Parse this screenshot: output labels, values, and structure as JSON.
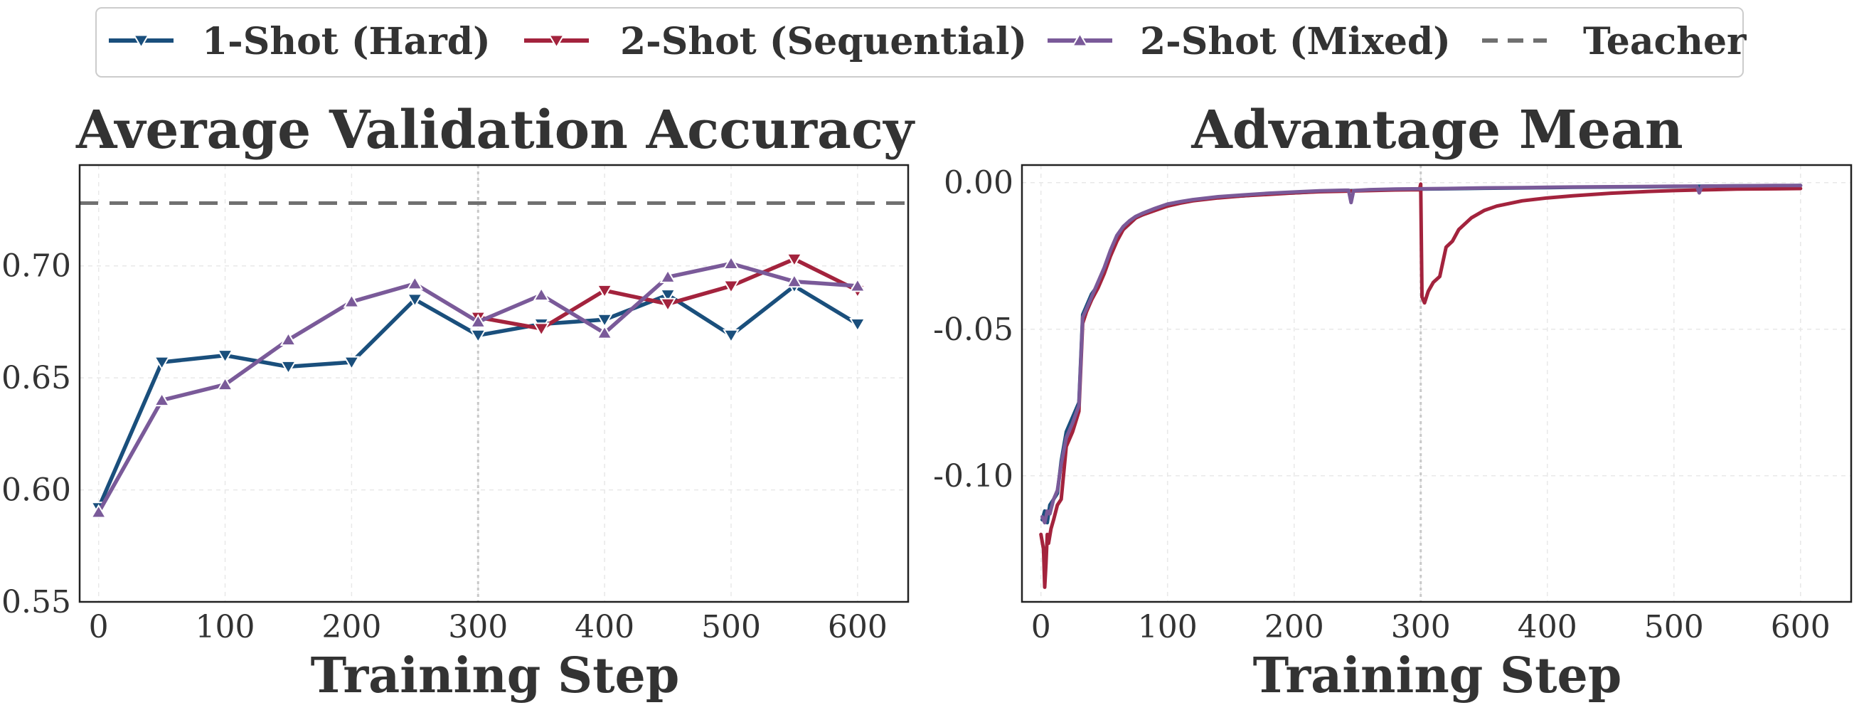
{
  "legend": {
    "items": [
      {
        "label": "1-Shot (Hard)",
        "color": "#1a4f7c",
        "marker": "triangle-down"
      },
      {
        "label": "2-Shot (Sequential)",
        "color": "#a3233d",
        "marker": "triangle-down"
      },
      {
        "label": "2-Shot (Mixed)",
        "color": "#7a5a99",
        "marker": "triangle-up"
      },
      {
        "label": "Teacher",
        "color": "#707070",
        "marker": "dashed-line"
      }
    ],
    "placement": "top-center"
  },
  "chart_data": [
    {
      "type": "line",
      "title": "Average Validation Accuracy",
      "xlabel": "Training Step",
      "ylabel": "",
      "xlim": [
        -15,
        640
      ],
      "ylim": [
        0.55,
        0.745
      ],
      "xticks": [
        "0",
        "100",
        "200",
        "300",
        "400",
        "500",
        "600"
      ],
      "yticks": [
        "0.55",
        "0.60",
        "0.65",
        "0.70"
      ],
      "grid": true,
      "vline_x": 300,
      "teacher_value": 0.728,
      "series": [
        {
          "name": "1-Shot (Hard)",
          "color": "#1a4f7c",
          "marker": "triangle-down",
          "x": [
            0,
            50,
            100,
            150,
            200,
            250,
            300,
            350,
            400,
            450,
            500,
            550,
            600
          ],
          "y": [
            0.592,
            0.657,
            0.66,
            0.655,
            0.657,
            0.685,
            0.669,
            0.674,
            0.676,
            0.687,
            0.669,
            0.691,
            0.674
          ]
        },
        {
          "name": "2-Shot (Sequential)",
          "color": "#a3233d",
          "marker": "triangle-down",
          "x": [
            300,
            350,
            400,
            450,
            500,
            550,
            600
          ],
          "y": [
            0.677,
            0.672,
            0.689,
            0.683,
            0.691,
            0.703,
            0.689
          ]
        },
        {
          "name": "2-Shot (Mixed)",
          "color": "#7a5a99",
          "marker": "triangle-up",
          "x": [
            0,
            50,
            100,
            150,
            200,
            250,
            300,
            350,
            400,
            450,
            500,
            550,
            600
          ],
          "y": [
            0.59,
            0.64,
            0.647,
            0.667,
            0.684,
            0.692,
            0.675,
            0.687,
            0.67,
            0.695,
            0.701,
            0.693,
            0.691
          ]
        }
      ]
    },
    {
      "type": "line",
      "title": "Advantage Mean",
      "xlabel": "Training Step",
      "ylabel": "",
      "xlim": [
        -15,
        640
      ],
      "ylim": [
        -0.143,
        0.006
      ],
      "xticks": [
        "0",
        "100",
        "200",
        "300",
        "400",
        "500",
        "600"
      ],
      "yticks": [
        "0.00",
        "-0.05",
        "-0.10"
      ],
      "grid": true,
      "vline_x": 300,
      "series": [
        {
          "name": "1-Shot (Hard)",
          "color": "#1a4f7c",
          "x": [
            1,
            3,
            5,
            7,
            10,
            13,
            16,
            20,
            25,
            30,
            33,
            36,
            40,
            45,
            50,
            55,
            60,
            65,
            70,
            75,
            80,
            90,
            100,
            110,
            120,
            140,
            160,
            180,
            200,
            220,
            240,
            260,
            280,
            300,
            320,
            350,
            380,
            400,
            420,
            450,
            480,
            500,
            520,
            550,
            580,
            600
          ],
          "y": [
            -0.115,
            -0.112,
            -0.116,
            -0.11,
            -0.108,
            -0.106,
            -0.095,
            -0.085,
            -0.08,
            -0.075,
            -0.045,
            -0.042,
            -0.038,
            -0.035,
            -0.03,
            -0.024,
            -0.019,
            -0.016,
            -0.014,
            -0.012,
            -0.011,
            -0.009,
            -0.0075,
            -0.0068,
            -0.006,
            -0.005,
            -0.0045,
            -0.0038,
            -0.0035,
            -0.003,
            -0.0028,
            -0.0026,
            -0.0024,
            -0.0022,
            -0.0021,
            -0.0019,
            -0.0018,
            -0.0017,
            -0.0016,
            -0.0015,
            -0.0014,
            -0.0013,
            -0.0012,
            -0.0011,
            -0.0011,
            -0.001
          ]
        },
        {
          "name": "2-Shot (Sequential)",
          "color": "#a3233d",
          "x": [
            0,
            2,
            3,
            4,
            5,
            6,
            8,
            10,
            13,
            16,
            20,
            25,
            30,
            33,
            36,
            40,
            45,
            50,
            55,
            60,
            65,
            70,
            75,
            80,
            90,
            100,
            110,
            120,
            140,
            160,
            180,
            200,
            220,
            240,
            260,
            280,
            299,
            300,
            301,
            303,
            306,
            310,
            315,
            320,
            325,
            330,
            340,
            350,
            360,
            380,
            400,
            420,
            450,
            480,
            500,
            520,
            550,
            580,
            600
          ],
          "y": [
            -0.12,
            -0.125,
            -0.138,
            -0.13,
            -0.12,
            -0.123,
            -0.118,
            -0.115,
            -0.11,
            -0.108,
            -0.09,
            -0.085,
            -0.078,
            -0.048,
            -0.044,
            -0.04,
            -0.036,
            -0.031,
            -0.025,
            -0.02,
            -0.016,
            -0.014,
            -0.012,
            -0.011,
            -0.0095,
            -0.008,
            -0.007,
            -0.0062,
            -0.0052,
            -0.0045,
            -0.004,
            -0.0035,
            -0.0031,
            -0.0029,
            -0.0027,
            -0.0025,
            -0.0024,
            -0.0005,
            -0.039,
            -0.041,
            -0.037,
            -0.034,
            -0.032,
            -0.022,
            -0.02,
            -0.016,
            -0.012,
            -0.0095,
            -0.008,
            -0.0062,
            -0.0052,
            -0.0045,
            -0.0036,
            -0.003,
            -0.0027,
            -0.0025,
            -0.0022,
            -0.0021,
            -0.002
          ]
        },
        {
          "name": "2-Shot (Mixed)",
          "color": "#7a5a99",
          "x": [
            1,
            3,
            5,
            7,
            10,
            13,
            16,
            20,
            25,
            30,
            33,
            36,
            40,
            45,
            50,
            55,
            60,
            65,
            70,
            75,
            80,
            90,
            100,
            110,
            120,
            140,
            160,
            180,
            200,
            220,
            240,
            243,
            245,
            247,
            260,
            280,
            300,
            320,
            350,
            380,
            400,
            420,
            450,
            480,
            500,
            518,
            520,
            522,
            550,
            580,
            600
          ],
          "y": [
            -0.114,
            -0.116,
            -0.112,
            -0.113,
            -0.108,
            -0.105,
            -0.096,
            -0.087,
            -0.082,
            -0.076,
            -0.046,
            -0.043,
            -0.039,
            -0.034,
            -0.029,
            -0.023,
            -0.018,
            -0.015,
            -0.013,
            -0.0115,
            -0.0105,
            -0.0088,
            -0.0073,
            -0.0065,
            -0.0058,
            -0.0048,
            -0.0042,
            -0.0036,
            -0.0032,
            -0.0028,
            -0.0026,
            -0.0026,
            -0.0068,
            -0.0027,
            -0.0024,
            -0.0022,
            -0.0021,
            -0.002,
            -0.0018,
            -0.0017,
            -0.0016,
            -0.0015,
            -0.0014,
            -0.0013,
            -0.0012,
            -0.0012,
            -0.0035,
            -0.0012,
            -0.0011,
            -0.001,
            -0.001
          ]
        }
      ]
    }
  ]
}
